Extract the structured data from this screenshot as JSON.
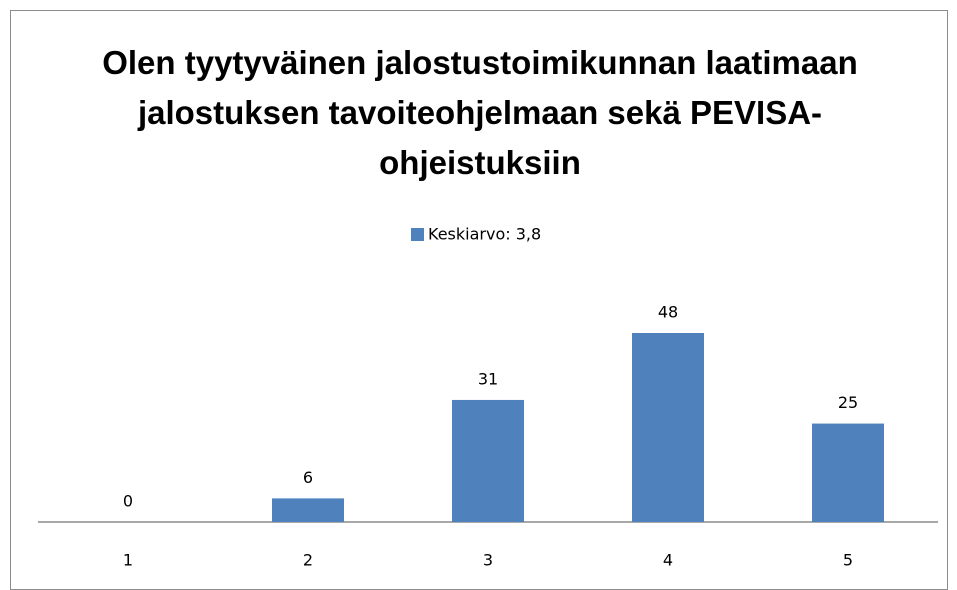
{
  "chart_data": {
    "type": "bar",
    "title": "Olen tyytyväinen jalostustoimikunnan laatimaan jalostuksen tavoiteohjelmaan sekä PEVISA-ohjeistuksiin",
    "categories": [
      "1",
      "2",
      "3",
      "4",
      "5"
    ],
    "series": [
      {
        "name": "Keskiarvo: 3,8",
        "color": "#4f81bd",
        "values": [
          0,
          6,
          31,
          48,
          25
        ]
      }
    ],
    "legend": "top"
  }
}
